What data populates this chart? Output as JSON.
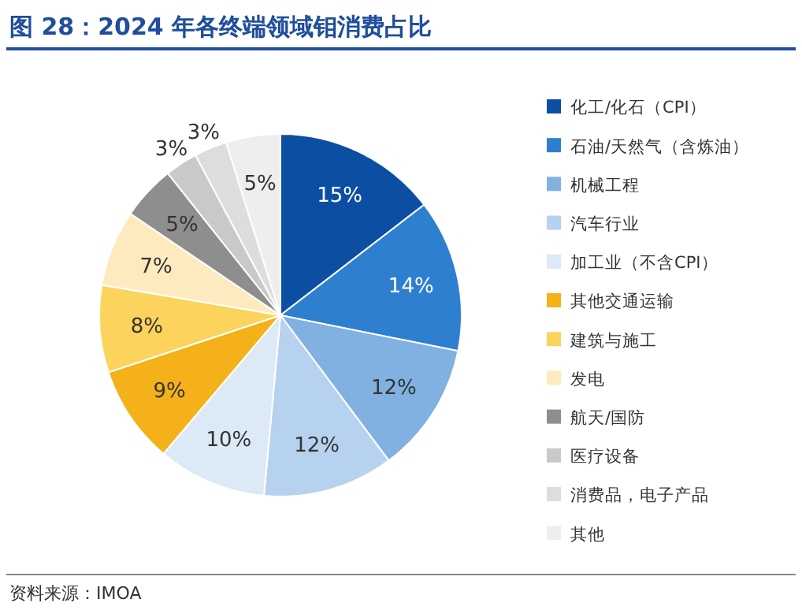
{
  "chart_data": {
    "type": "pie",
    "title": "图 28：2024 年各终端领域钼消费占比",
    "categories": [
      "化工/化石（CPI）",
      "石油/天然气（含炼油）",
      "机械工程",
      "汽车行业",
      "加工业（不含CPI）",
      "其他交通运输",
      "建筑与施工",
      "发电",
      "航天/国防",
      "医疗设备",
      "消费品，电子产品",
      "其他"
    ],
    "values": [
      15,
      14,
      12,
      12,
      10,
      9,
      8,
      7,
      5,
      3,
      3,
      5
    ],
    "colors": [
      "#0b4ea2",
      "#2f7fd0",
      "#80b1e1",
      "#b6d2ef",
      "#dce9f6",
      "#f5b11a",
      "#fcd35c",
      "#fdebbf",
      "#8e8e8e",
      "#c9c9c9",
      "#dddddd",
      "#eeeeee"
    ],
    "value_labels": [
      "15%",
      "14%",
      "12%",
      "12%",
      "10%",
      "9%",
      "8%",
      "7%",
      "5%",
      "3%",
      "3%",
      "5%"
    ],
    "legend": "right",
    "annotations": [
      "资料来源：IMOA"
    ]
  }
}
